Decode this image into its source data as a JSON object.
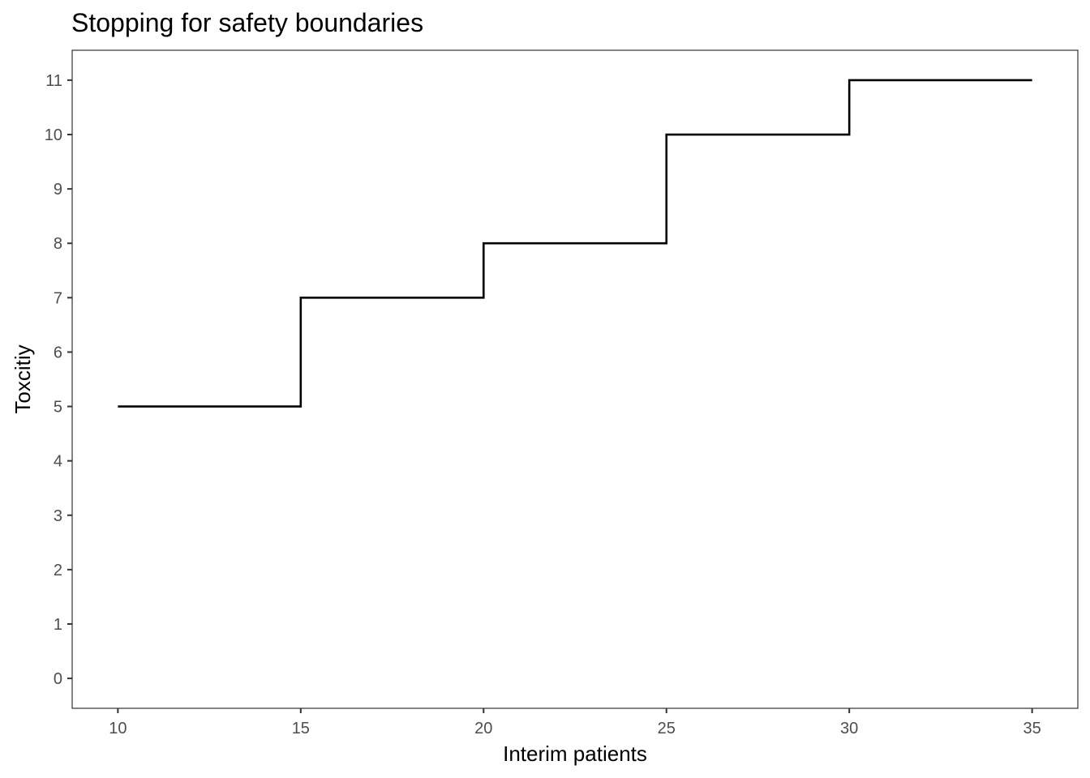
{
  "chart_data": {
    "type": "line",
    "style": "step",
    "title": "Stopping for safety boundaries",
    "xlabel": "Interim patients",
    "ylabel": "Toxcitiy",
    "x": [
      10,
      15,
      20,
      25,
      30,
      35
    ],
    "series": [
      {
        "values": [
          5,
          7,
          8,
          10,
          11,
          11
        ]
      }
    ],
    "xlim": [
      8.75,
      36.25
    ],
    "ylim": [
      -0.55,
      11.55
    ],
    "xticks": [
      10,
      15,
      20,
      25,
      30,
      35
    ],
    "yticks": [
      0,
      1,
      2,
      3,
      4,
      5,
      6,
      7,
      8,
      9,
      10,
      11
    ],
    "grid": false,
    "legend": "none",
    "line_color": "#000000",
    "panel_border_color": "#333333",
    "tick_label_color": "#4d4d4d"
  }
}
